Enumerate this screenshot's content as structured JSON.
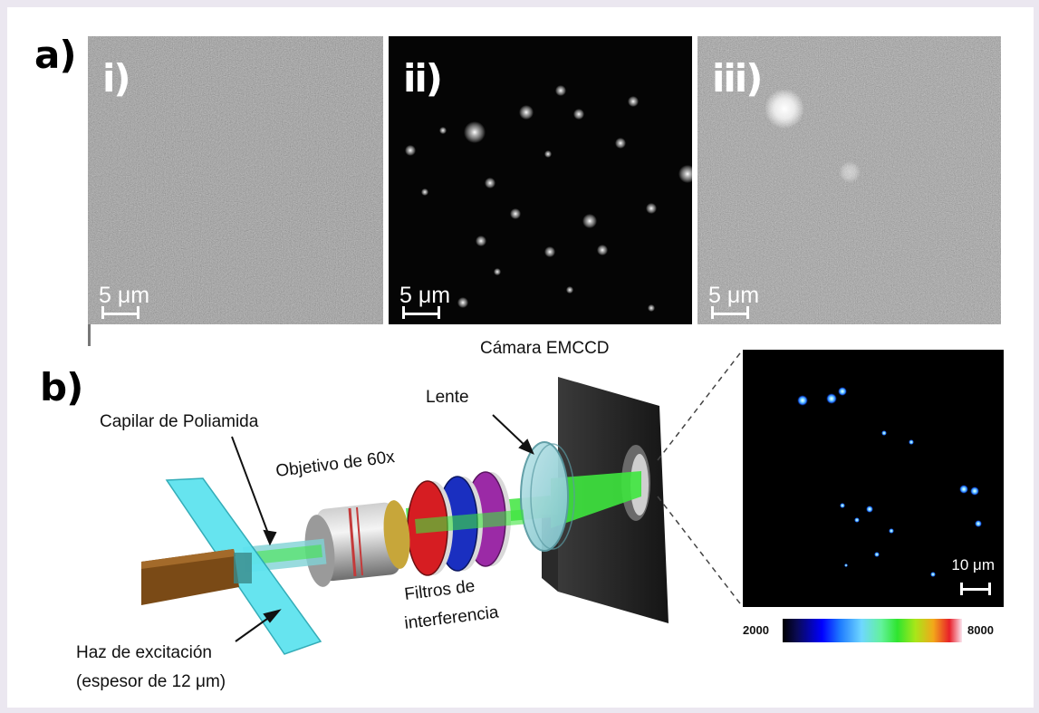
{
  "panel_a": {
    "label": "a)",
    "images": [
      {
        "label": "i)",
        "scale": "5 μm"
      },
      {
        "label": "ii)",
        "scale": "5 μm"
      },
      {
        "label": "iii)",
        "scale": "5 μm"
      }
    ]
  },
  "panel_b": {
    "label": "b)",
    "labels": {
      "camera": "Cámara EMCCD",
      "lens": "Lente",
      "capillary": "Capilar de Poliamida",
      "objective": "Objetivo de 60x",
      "filters_line1": "Filtros de",
      "filters_line2": "interferencia",
      "beam_line1": "Haz de excitación",
      "beam_line2": "(espesor de 12 μm)"
    },
    "fluorescence_image": {
      "scale": "10 μm",
      "colorbar_min": "2000",
      "colorbar_max": "8000"
    }
  },
  "colors": {
    "background": "#ebe7f0",
    "beam": "#5ee3ef",
    "laser_green": "#3ee53e",
    "filter_red": "#d61d22",
    "filter_blue": "#1a2fc0",
    "filter_purple": "#9b2aa6",
    "source_brown": "#7a4a16"
  }
}
